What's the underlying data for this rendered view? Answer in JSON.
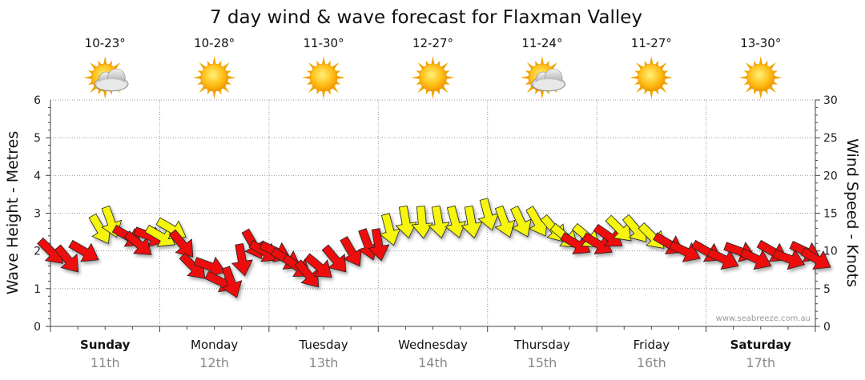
{
  "chart_data": {
    "type": "line",
    "title": "7 day wind & wave forecast for Flaxman Valley",
    "ylabel_left": "Wave Height - Metres",
    "ylabel_right": "Wind Speed - Knots",
    "ylim_left": [
      0,
      6
    ],
    "ylim_right": [
      0,
      30
    ],
    "yticks_left": [
      "0",
      "1",
      "2",
      "3",
      "4",
      "5",
      "6"
    ],
    "yticks_right": [
      "0",
      "5",
      "10",
      "15",
      "20",
      "25",
      "30"
    ],
    "grid": true,
    "credit": "www.seabreeze.com.au",
    "days": [
      {
        "day": "Sunday",
        "date": "11th",
        "bold": true,
        "temp": "10-23°",
        "icon": "partly-cloudy-icon"
      },
      {
        "day": "Monday",
        "date": "12th",
        "bold": false,
        "temp": "10-28°",
        "icon": "sun-icon"
      },
      {
        "day": "Tuesday",
        "date": "13th",
        "bold": false,
        "temp": "11-30°",
        "icon": "sun-icon"
      },
      {
        "day": "Wednesday",
        "date": "14th",
        "bold": false,
        "temp": "12-27°",
        "icon": "sun-icon"
      },
      {
        "day": "Thursday",
        "date": "15th",
        "bold": false,
        "temp": "11-24°",
        "icon": "partly-cloudy-icon"
      },
      {
        "day": "Friday",
        "date": "16th",
        "bold": false,
        "temp": "11-27°",
        "icon": "sun-icon"
      },
      {
        "day": "Saturday",
        "date": "17th",
        "bold": true,
        "temp": "13-30°",
        "icon": "sun-icon"
      }
    ],
    "series": [
      {
        "name": "Wind",
        "unit": "knots",
        "colors": {
          "strong": "#ee1111",
          "moderate": "#f5f510"
        },
        "points": [
          {
            "t": 0.0,
            "knots": 10,
            "dir": 315,
            "c": "strong"
          },
          {
            "t": 0.15,
            "knots": 9,
            "dir": 320,
            "c": "strong"
          },
          {
            "t": 0.3,
            "knots": 10,
            "dir": 300,
            "c": "strong"
          },
          {
            "t": 0.45,
            "knots": 13,
            "dir": 330,
            "c": "moderate"
          },
          {
            "t": 0.55,
            "knots": 14,
            "dir": 340,
            "c": "moderate"
          },
          {
            "t": 0.7,
            "knots": 12,
            "dir": 300,
            "c": "strong"
          },
          {
            "t": 0.8,
            "knots": 11,
            "dir": 310,
            "c": "strong"
          },
          {
            "t": 0.9,
            "knots": 12,
            "dir": 290,
            "c": "strong"
          },
          {
            "t": 1.0,
            "knots": 12,
            "dir": 300,
            "c": "moderate"
          },
          {
            "t": 1.1,
            "knots": 13,
            "dir": 300,
            "c": "moderate"
          },
          {
            "t": 1.2,
            "knots": 11,
            "dir": 320,
            "c": "strong"
          },
          {
            "t": 1.3,
            "knots": 8,
            "dir": 315,
            "c": "strong"
          },
          {
            "t": 1.45,
            "knots": 8,
            "dir": 290,
            "c": "strong"
          },
          {
            "t": 1.55,
            "knots": 6,
            "dir": 295,
            "c": "strong"
          },
          {
            "t": 1.65,
            "knots": 6,
            "dir": 340,
            "c": "strong"
          },
          {
            "t": 1.75,
            "knots": 9,
            "dir": 350,
            "c": "strong"
          },
          {
            "t": 1.85,
            "knots": 11,
            "dir": 330,
            "c": "strong"
          },
          {
            "t": 1.95,
            "knots": 10,
            "dir": 300,
            "c": "strong"
          },
          {
            "t": 2.05,
            "knots": 10,
            "dir": 295,
            "c": "strong"
          },
          {
            "t": 2.15,
            "knots": 9,
            "dir": 300,
            "c": "strong"
          },
          {
            "t": 2.25,
            "knots": 8,
            "dir": 305,
            "c": "strong"
          },
          {
            "t": 2.35,
            "knots": 7,
            "dir": 320,
            "c": "strong"
          },
          {
            "t": 2.45,
            "knots": 8,
            "dir": 310,
            "c": "strong"
          },
          {
            "t": 2.6,
            "knots": 9,
            "dir": 320,
            "c": "strong"
          },
          {
            "t": 2.75,
            "knots": 10,
            "dir": 330,
            "c": "strong"
          },
          {
            "t": 2.9,
            "knots": 11,
            "dir": 340,
            "c": "strong"
          },
          {
            "t": 3.0,
            "knots": 11,
            "dir": 350,
            "c": "strong"
          },
          {
            "t": 3.1,
            "knots": 13,
            "dir": 345,
            "c": "moderate"
          },
          {
            "t": 3.25,
            "knots": 14,
            "dir": 350,
            "c": "moderate"
          },
          {
            "t": 3.4,
            "knots": 14,
            "dir": 355,
            "c": "moderate"
          },
          {
            "t": 3.55,
            "knots": 14,
            "dir": 350,
            "c": "moderate"
          },
          {
            "t": 3.7,
            "knots": 14,
            "dir": 345,
            "c": "moderate"
          },
          {
            "t": 3.85,
            "knots": 14,
            "dir": 350,
            "c": "moderate"
          },
          {
            "t": 4.0,
            "knots": 15,
            "dir": 345,
            "c": "moderate"
          },
          {
            "t": 4.15,
            "knots": 14,
            "dir": 340,
            "c": "moderate"
          },
          {
            "t": 4.3,
            "knots": 14,
            "dir": 335,
            "c": "moderate"
          },
          {
            "t": 4.45,
            "knots": 14,
            "dir": 330,
            "c": "moderate"
          },
          {
            "t": 4.6,
            "knots": 13,
            "dir": 320,
            "c": "moderate"
          },
          {
            "t": 4.7,
            "knots": 12,
            "dir": 310,
            "c": "moderate"
          },
          {
            "t": 4.8,
            "knots": 11,
            "dir": 300,
            "c": "strong"
          },
          {
            "t": 4.9,
            "knots": 12,
            "dir": 310,
            "c": "moderate"
          },
          {
            "t": 5.0,
            "knots": 11,
            "dir": 300,
            "c": "strong"
          },
          {
            "t": 5.1,
            "knots": 12,
            "dir": 305,
            "c": "strong"
          },
          {
            "t": 5.2,
            "knots": 13,
            "dir": 315,
            "c": "moderate"
          },
          {
            "t": 5.35,
            "knots": 13,
            "dir": 320,
            "c": "moderate"
          },
          {
            "t": 5.5,
            "knots": 12,
            "dir": 315,
            "c": "moderate"
          },
          {
            "t": 5.65,
            "knots": 11,
            "dir": 300,
            "c": "strong"
          },
          {
            "t": 5.8,
            "knots": 10,
            "dir": 295,
            "c": "strong"
          },
          {
            "t": 6.0,
            "knots": 10,
            "dir": 300,
            "c": "strong"
          },
          {
            "t": 6.15,
            "knots": 9,
            "dir": 295,
            "c": "strong"
          },
          {
            "t": 6.3,
            "knots": 10,
            "dir": 290,
            "c": "strong"
          },
          {
            "t": 6.45,
            "knots": 9,
            "dir": 295,
            "c": "strong"
          },
          {
            "t": 6.6,
            "knots": 10,
            "dir": 300,
            "c": "strong"
          },
          {
            "t": 6.75,
            "knots": 9,
            "dir": 290,
            "c": "strong"
          },
          {
            "t": 6.9,
            "knots": 10,
            "dir": 295,
            "c": "strong"
          },
          {
            "t": 7.0,
            "knots": 9,
            "dir": 300,
            "c": "strong"
          }
        ]
      }
    ]
  }
}
